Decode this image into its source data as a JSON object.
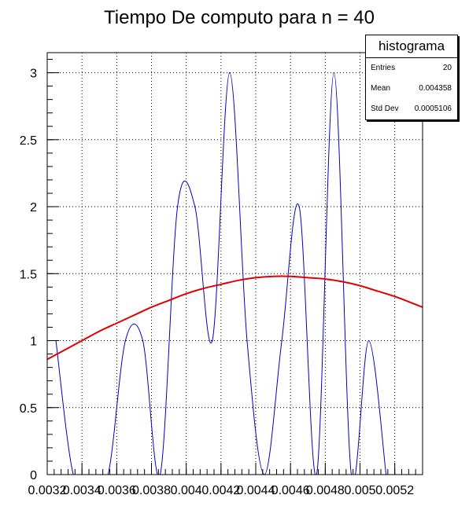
{
  "chart_data": {
    "type": "line",
    "title": "Tiempo De computo para n = 40",
    "xlabel": "",
    "ylabel": "",
    "xlim": [
      0.0032,
      0.00536
    ],
    "ylim": [
      0,
      3.15
    ],
    "x_ticks": [
      0.0032,
      0.0034,
      0.0036,
      0.0038,
      0.004,
      0.0042,
      0.0044,
      0.0046,
      0.0048,
      0.005,
      0.0052
    ],
    "x_tick_labels": [
      "0.0032",
      "0.0034",
      "0.0036",
      "0.0038",
      "0.004",
      "0.0042",
      "0.0044",
      "0.0046",
      "0.0048",
      "0.005",
      "0.0052"
    ],
    "y_ticks": [
      0,
      0.5,
      1,
      1.5,
      2,
      2.5,
      3
    ],
    "y_tick_labels": [
      "0",
      "0.5",
      "1",
      "1.5",
      "2",
      "2.5",
      "3"
    ],
    "grid": true,
    "series": [
      {
        "color": "#0000cc",
        "style": "smooth-line",
        "x": [
          0.00325,
          0.00335,
          0.00345,
          0.00355,
          0.00365,
          0.00375,
          0.00385,
          0.00395,
          0.00405,
          0.00415,
          0.00425,
          0.00435,
          0.00445,
          0.00455,
          0.00465,
          0.00475,
          0.00485,
          0.00495,
          0.00505,
          0.00515
        ],
        "values": [
          1,
          0,
          0,
          0,
          1,
          1,
          0,
          2,
          2,
          1,
          3,
          1,
          0,
          1,
          2,
          0,
          3,
          0,
          1,
          0
        ]
      },
      {
        "color": "#e00000",
        "style": "fit",
        "x": [
          0.0032,
          0.0033,
          0.0034,
          0.0035,
          0.0036,
          0.0037,
          0.0038,
          0.0039,
          0.004,
          0.0041,
          0.0042,
          0.0043,
          0.0044,
          0.0045,
          0.0046,
          0.0047,
          0.0048,
          0.0049,
          0.005,
          0.0051,
          0.0052,
          0.0053,
          0.00536
        ],
        "values": [
          0.86,
          0.93,
          1.0,
          1.07,
          1.13,
          1.19,
          1.25,
          1.3,
          1.35,
          1.39,
          1.42,
          1.45,
          1.47,
          1.48,
          1.48,
          1.47,
          1.46,
          1.44,
          1.41,
          1.37,
          1.33,
          1.28,
          1.25
        ]
      }
    ]
  },
  "stats": {
    "name": "histograma",
    "rows": [
      {
        "label": "Entries",
        "value": "20"
      },
      {
        "label": "Mean",
        "value": "0.004358"
      },
      {
        "label": "Std Dev",
        "value": "0.0005106"
      }
    ]
  }
}
